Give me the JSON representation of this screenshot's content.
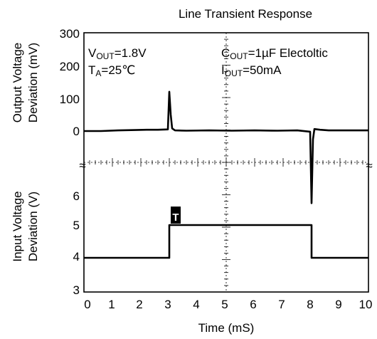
{
  "chart_data": {
    "type": "line",
    "title": "Line Transient Response",
    "xlabel": "Time (mS)",
    "xlim": [
      0,
      10
    ],
    "x_ticks": [
      "0",
      "1",
      "2",
      "3",
      "4",
      "5",
      "6",
      "7",
      "8",
      "9",
      "10"
    ],
    "grid": "dotted crosshair axes only",
    "panels": [
      {
        "name": "output",
        "ylabel_lines": [
          "Output Voltage",
          "Deviation (mV)"
        ],
        "y_ticks": [
          "300",
          "200",
          "100",
          "0"
        ],
        "ylim": [
          -100,
          300
        ],
        "series": [
          {
            "x": [
              0,
              0.6,
              1.2,
              1.8,
              2.2,
              2.6,
              2.95,
              3.0,
              3.05,
              3.1,
              3.2,
              3.6,
              4.4,
              5.2,
              6.0,
              6.8,
              7.5,
              7.95,
              8.0,
              8.05,
              8.1,
              8.3,
              8.6,
              9.0,
              9.6,
              10
            ],
            "y": [
              0,
              0,
              2,
              3,
              4,
              4,
              5,
              120,
              50,
              8,
              2,
              1,
              2,
              1,
              2,
              1,
              2,
              -2,
              -220,
              -25,
              6,
              4,
              2,
              2,
              2,
              2
            ]
          }
        ]
      },
      {
        "name": "input",
        "ylabel_lines": [
          "Input Voltage",
          "Deviation (V)"
        ],
        "y_ticks": [
          "6",
          "5",
          "4",
          "3"
        ],
        "ylim": [
          3,
          7
        ],
        "series": [
          {
            "x": [
              0,
              3.0,
              3.0,
              8.0,
              8.0,
              10
            ],
            "y": [
              4,
              4,
              5,
              5,
              4,
              4
            ]
          }
        ]
      }
    ],
    "annotations": {
      "vout_main": "V",
      "vout_sub": "OUT",
      "vout_val": "=1.8V",
      "ta_main": "T",
      "ta_sub": "A",
      "ta_val": "=25℃",
      "cout_main": "C",
      "cout_sub": "OUT",
      "cout_val": "=1µF  Electoltic",
      "iout_main": "I",
      "iout_sub": "OUT",
      "iout_val": "=50mA",
      "trigger": "T"
    },
    "break_symbol": "≈"
  }
}
